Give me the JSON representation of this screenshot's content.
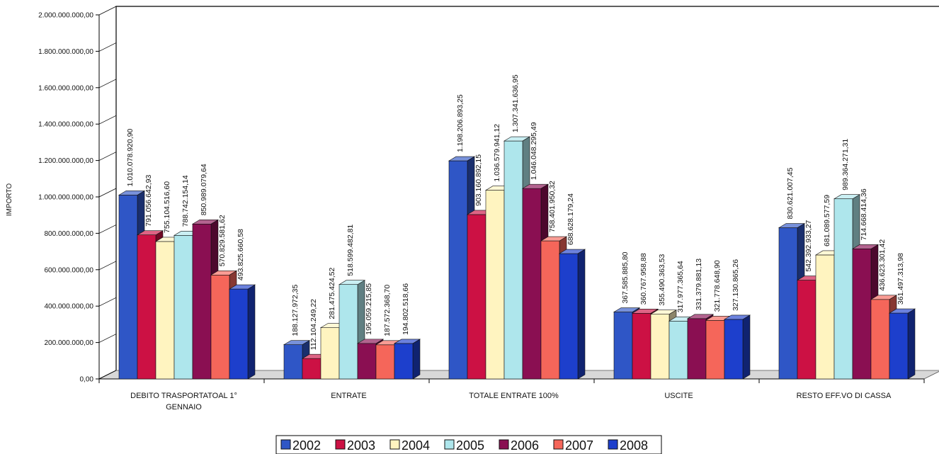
{
  "chart_data": {
    "type": "bar",
    "ylabel": "IMPORTO",
    "ylim": [
      0,
      2000000000
    ],
    "y_ticks": [
      "0,00",
      "200.000.000,00",
      "400.000.000,00",
      "600.000.000,00",
      "800.000.000,00",
      "1.000.000.000,00",
      "1.200.000.000,00",
      "1.400.000.000,00",
      "1.600.000.000,00",
      "1.800.000.000,00",
      "2.000.000.000,00"
    ],
    "categories": [
      "DEBITO TRASPORTATOAL 1° GENNAIO",
      "ENTRATE",
      "TOTALE ENTRATE 100%",
      "USCITE",
      "RESTO EFF.VO DI CASSA"
    ],
    "category_lines": [
      [
        "DEBITO TRASPORTATOAL 1°",
        "GENNAIO"
      ],
      [
        "ENTRATE"
      ],
      [
        "TOTALE ENTRATE 100%"
      ],
      [
        "USCITE"
      ],
      [
        "RESTO EFF.VO DI CASSA"
      ]
    ],
    "series": [
      {
        "name": "2002",
        "color": "#2f56c6",
        "values": [
          1010078920.9,
          188127972.35,
          1198206893.25,
          367585885.8,
          830621007.45
        ],
        "labels": [
          "1.010.078.920,90",
          "188.127.972,35",
          "1.198.206.893,25",
          "367.585.885,80",
          "830.621.007,45"
        ]
      },
      {
        "name": "2003",
        "color": "#cc1144",
        "values": [
          791056642.93,
          112104249.22,
          903160892.15,
          360767958.88,
          542392933.27
        ],
        "labels": [
          "791.056.642,93",
          "112.104.249,22",
          "903.160.892,15",
          "360.767.958,88",
          "542.392.933,27"
        ]
      },
      {
        "name": "2004",
        "color": "#fff4c0",
        "values": [
          755104516.6,
          281475424.52,
          1036579941.12,
          355490363.53,
          681089577.59
        ],
        "labels": [
          "755.104.516,60",
          "281.475.424,52",
          "1.036.579.941,12",
          "355.490.363,53",
          "681.089.577,59"
        ]
      },
      {
        "name": "2005",
        "color": "#aee6ec",
        "values": [
          788742154.14,
          518599482.81,
          1307341636.95,
          317977365.64,
          989364271.31
        ],
        "labels": [
          "788.742.154,14",
          "518.599.482,81",
          "1.307.341.636,95",
          "317.977.365,64",
          "989.364.271,31"
        ]
      },
      {
        "name": "2006",
        "color": "#8a0f52",
        "values": [
          850989079.64,
          195059215.85,
          1046048295.49,
          331379881.13,
          714668414.36
        ],
        "labels": [
          "850.989.079,64",
          "195.059.215,85",
          "1.046.048.295,49",
          "331.379.881,13",
          "714.668.414,36"
        ]
      },
      {
        "name": "2007",
        "color": "#f5665a",
        "values": [
          570829581.62,
          187572368.7,
          758401950.32,
          321778648.9,
          436623301.42
        ],
        "labels": [
          "570.829.581,62",
          "187.572.368,70",
          "758.401.950,32",
          "321.778.648,90",
          "436.623.301,42"
        ]
      },
      {
        "name": "2008",
        "color": "#1d3fcc",
        "values": [
          493825660.58,
          194802518.66,
          688628179.24,
          327130865.26,
          361497313.98
        ],
        "labels": [
          "493.825.660,58",
          "194.802.518,66",
          "688.628.179,24",
          "327.130.865,26",
          "361.497.313,98"
        ]
      }
    ],
    "legend_position": "bottom",
    "grid": false
  }
}
